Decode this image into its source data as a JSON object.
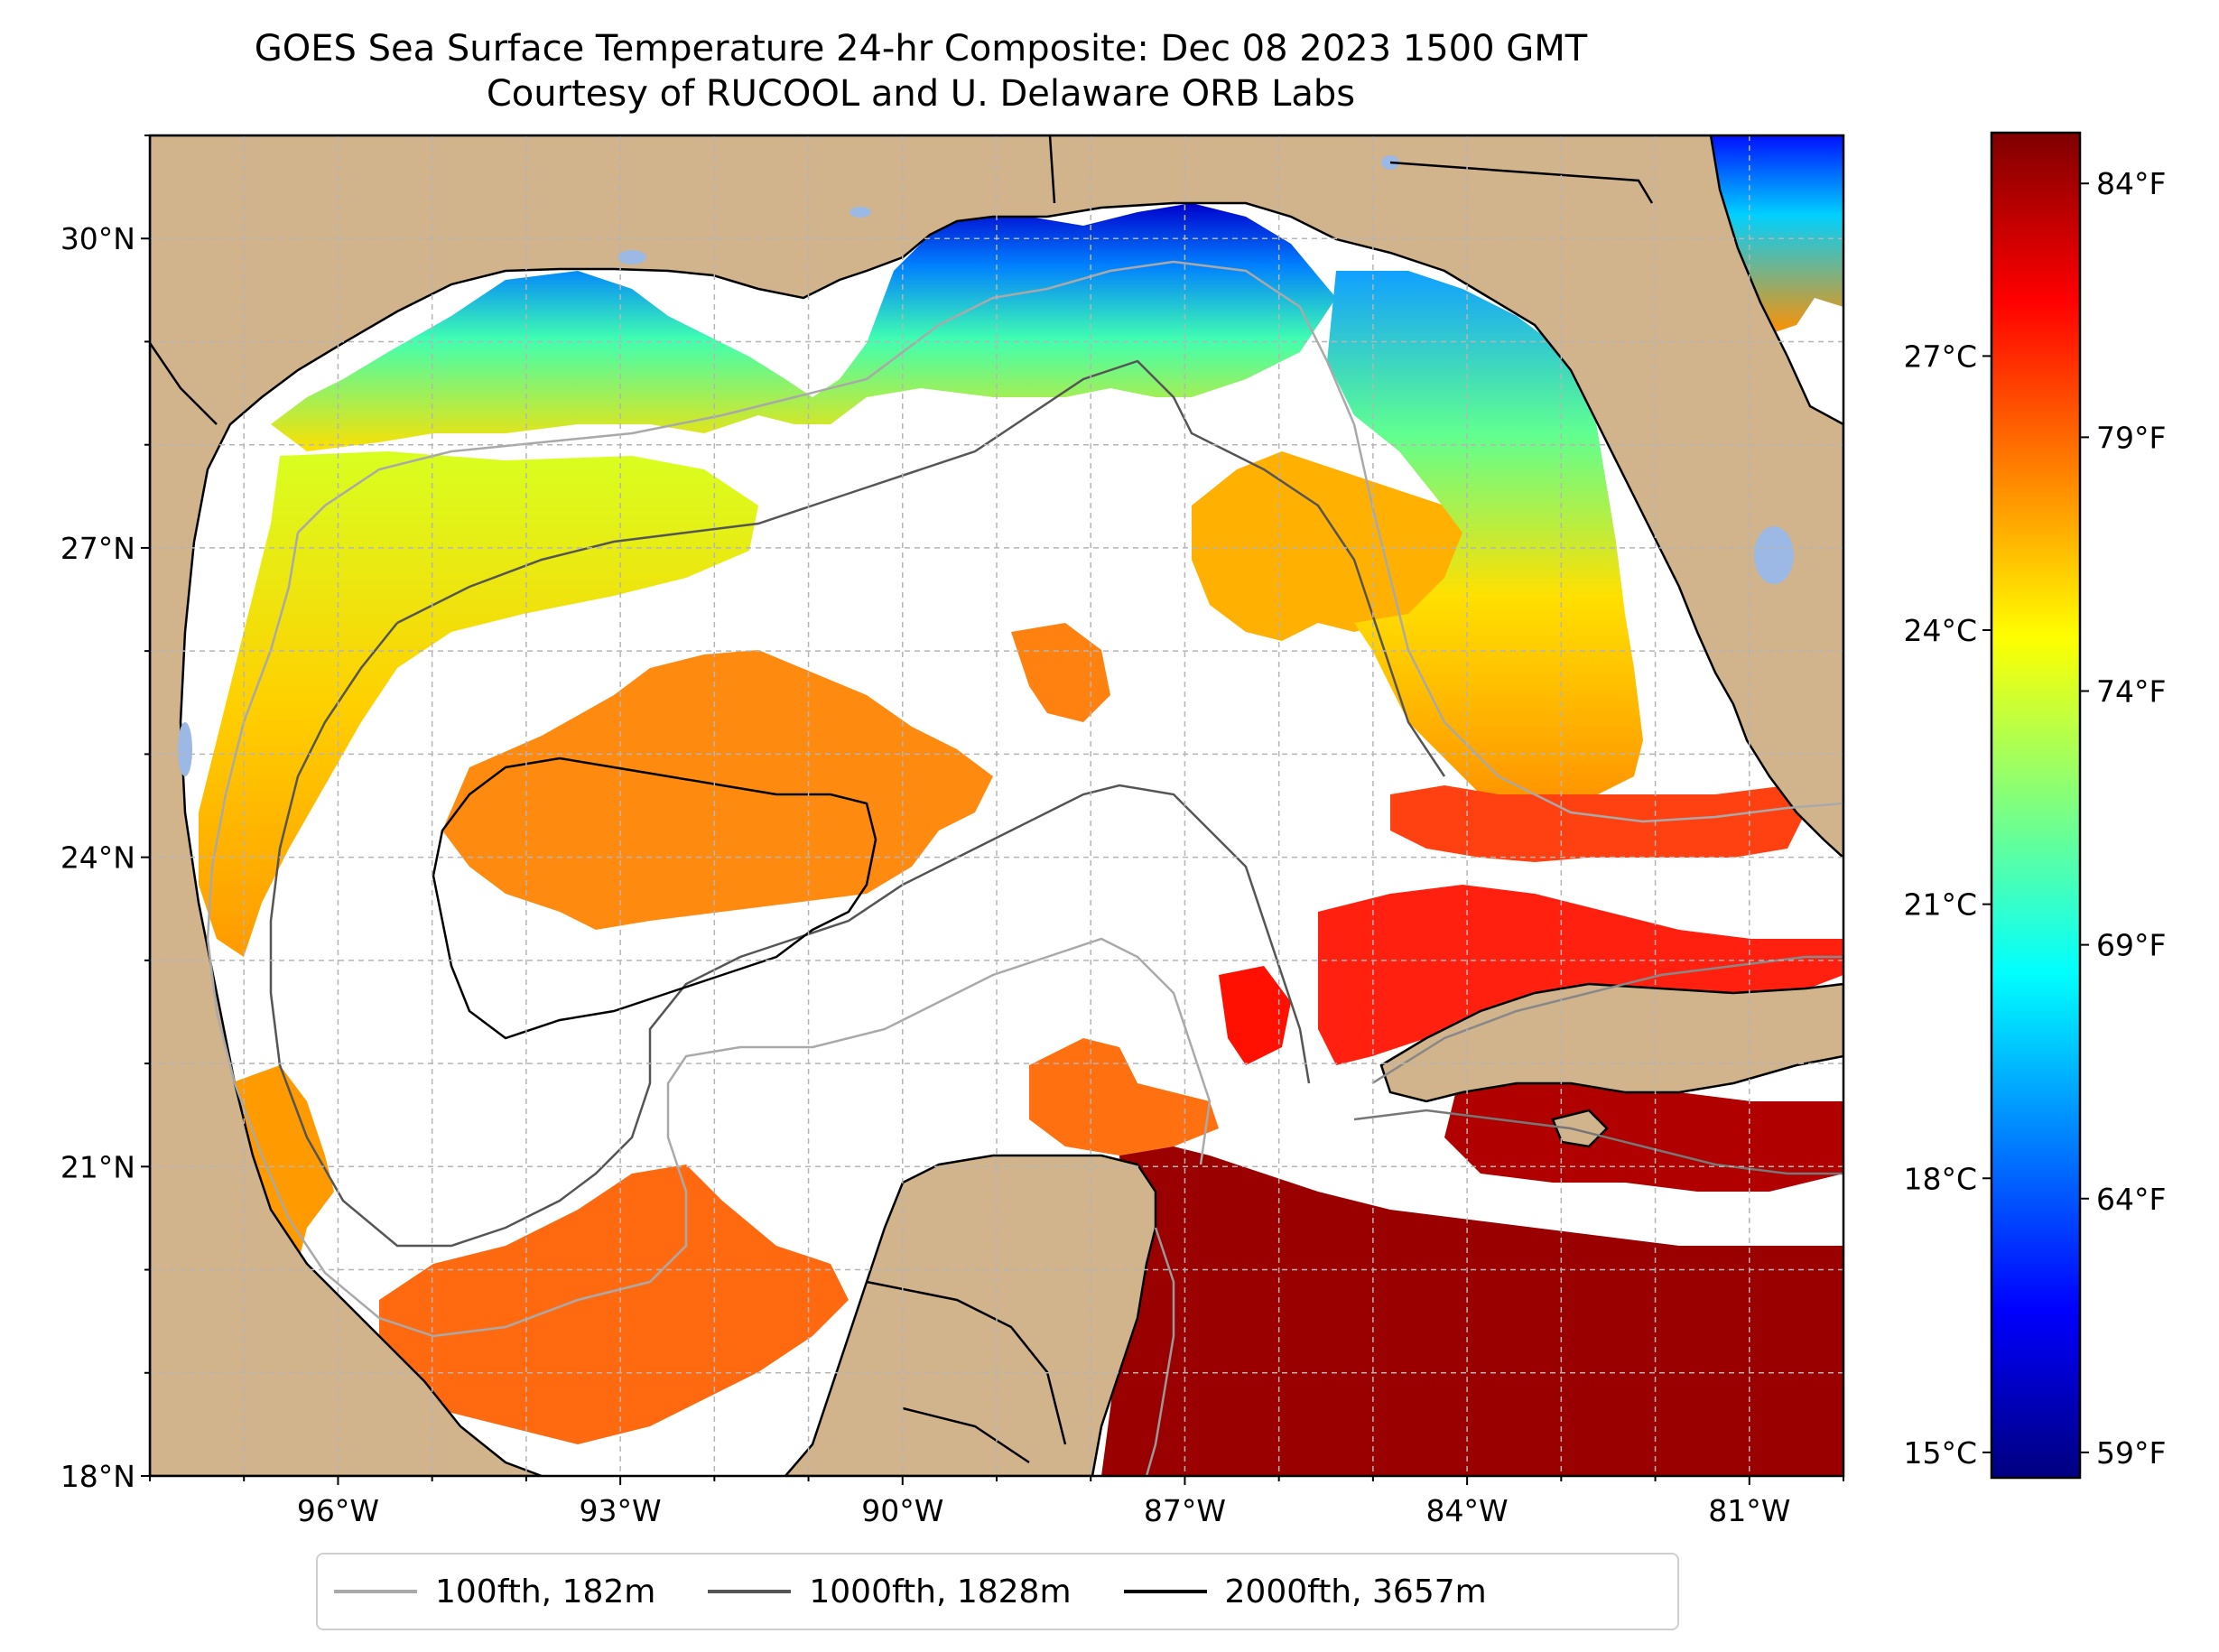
{
  "title": {
    "line1": "GOES Sea Surface Temperature 24-hr Composite: Dec 08 2023 1500 GMT",
    "line2": "Courtesy of RUCOOL and U. Delaware ORB Labs"
  },
  "map": {
    "lon_range": [
      -98,
      -80
    ],
    "lat_range": [
      18,
      31
    ],
    "land_color": "#d2b48c",
    "water_color": "#ffffff",
    "lakes_color": "#9cb8e4",
    "lat_ticks": [
      {
        "value": 30,
        "label": "30°N"
      },
      {
        "value": 27,
        "label": "27°N"
      },
      {
        "value": 24,
        "label": "24°N"
      },
      {
        "value": 21,
        "label": "21°N"
      },
      {
        "value": 18,
        "label": "18°N"
      }
    ],
    "lon_ticks": [
      {
        "value": -96,
        "label": "96°W"
      },
      {
        "value": -93,
        "label": "93°W"
      },
      {
        "value": -90,
        "label": "90°W"
      },
      {
        "value": -87,
        "label": "87°W"
      },
      {
        "value": -84,
        "label": "84°W"
      },
      {
        "value": -81,
        "label": "81°W"
      }
    ],
    "grid": true
  },
  "colorbar": {
    "colormap": "jet",
    "c_ticks": [
      {
        "value": 27,
        "label": "27°C"
      },
      {
        "value": 24,
        "label": "24°C"
      },
      {
        "value": 21,
        "label": "21°C"
      },
      {
        "value": 18,
        "label": "18°C"
      },
      {
        "value": 15,
        "label": "15°C"
      }
    ],
    "f_ticks": [
      {
        "value": 84,
        "label": "84°F"
      },
      {
        "value": 79,
        "label": "79°F"
      },
      {
        "value": 74,
        "label": "74°F"
      },
      {
        "value": 69,
        "label": "69°F"
      },
      {
        "value": 64,
        "label": "64°F"
      },
      {
        "value": 59,
        "label": "59°F"
      }
    ],
    "f_range": [
      58.5,
      85
    ]
  },
  "legend": [
    {
      "label": "100fth, 182m",
      "color": "#a9a9a9"
    },
    {
      "label": "1000fth, 1828m",
      "color": "#555555"
    },
    {
      "label": "2000fth, 3657m",
      "color": "#000000"
    }
  ]
}
